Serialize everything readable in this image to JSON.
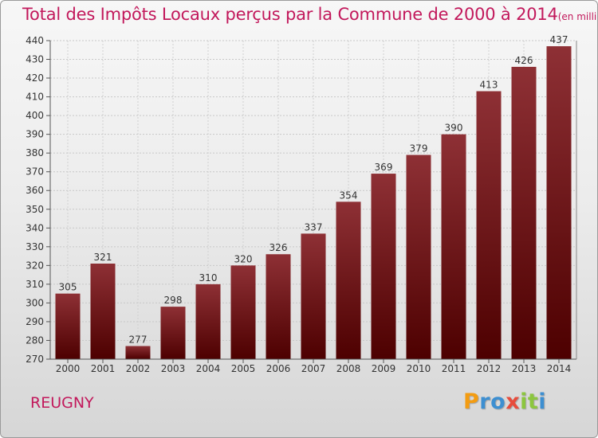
{
  "chart_data": {
    "type": "bar",
    "title": "Total des Impôts Locaux perçus par la Commune de 2000 à 2014",
    "unit_label": "(en milliers d'€)",
    "categories": [
      "2000",
      "2001",
      "2002",
      "2003",
      "2004",
      "2005",
      "2006",
      "2007",
      "2008",
      "2009",
      "2010",
      "2011",
      "2012",
      "2013",
      "2014"
    ],
    "values": [
      305,
      321,
      277,
      298,
      310,
      320,
      326,
      337,
      354,
      369,
      379,
      390,
      413,
      426,
      437
    ],
    "ylim": [
      270,
      440
    ],
    "ytick_step": 10,
    "yticks": [
      "270",
      "280",
      "290",
      "300",
      "310",
      "320",
      "330",
      "340",
      "350",
      "360",
      "370",
      "380",
      "390",
      "400",
      "410",
      "420",
      "430",
      "440"
    ],
    "xlabel": "",
    "ylabel": "",
    "grid": true,
    "bar_color_top": "#8e3035",
    "bar_color_bottom": "#4d0000"
  },
  "commune": "REUGNY",
  "logo": {
    "text": "Proxiti",
    "letters": [
      "P",
      "r",
      "o",
      "x",
      "i",
      "t",
      "i"
    ],
    "colors": [
      "#f39c12",
      "#3d8fd1",
      "#3d8fd1",
      "#e74c3c",
      "#8cc63f",
      "#8cc63f",
      "#3d8fd1"
    ]
  }
}
